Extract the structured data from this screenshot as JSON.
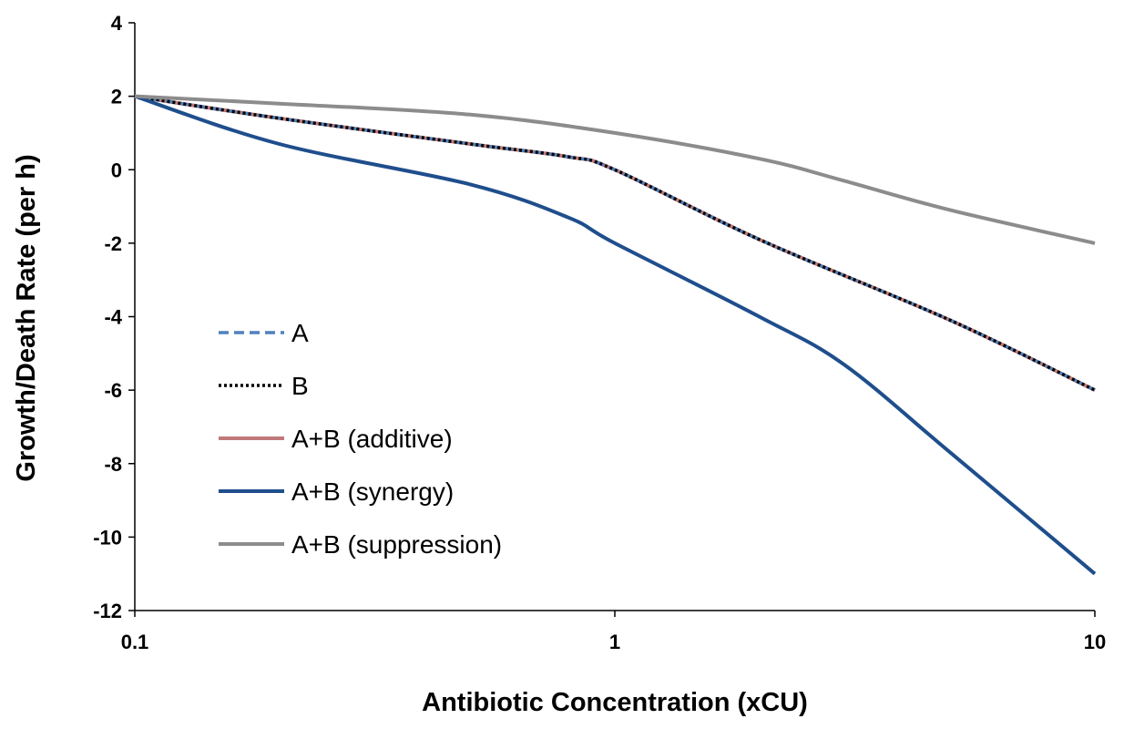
{
  "chart_data": {
    "type": "line",
    "xlabel": "Antibiotic Concentration (xCU)",
    "ylabel": "Growth/Death Rate (per h)",
    "x_scale": "log",
    "xlim": [
      0.1,
      10
    ],
    "ylim": [
      -12,
      4
    ],
    "x_ticks": [
      0.1,
      1,
      10
    ],
    "x_tick_labels": [
      "0.1",
      "1",
      "10"
    ],
    "y_ticks": [
      4,
      2,
      0,
      -2,
      -4,
      -6,
      -8,
      -10,
      -12
    ],
    "y_tick_labels": [
      "4",
      "2",
      "0",
      "-2",
      "-4",
      "-6",
      "-8",
      "-10",
      "-12"
    ],
    "grid": false,
    "legend_position": "lower-left",
    "series": [
      {
        "name": "A",
        "color": "#4F81BD",
        "line_style": "dashed",
        "x": [
          0.1,
          0.2,
          0.5,
          0.8,
          1,
          2,
          5,
          10
        ],
        "y": [
          2,
          1.4,
          0.7,
          0.35,
          0,
          -1.9,
          -4.1,
          -6
        ]
      },
      {
        "name": "B",
        "color": "#000000",
        "line_style": "dotted",
        "x": [
          0.1,
          0.2,
          0.5,
          0.8,
          1,
          2,
          5,
          10
        ],
        "y": [
          2,
          1.4,
          0.7,
          0.35,
          0,
          -1.9,
          -4.1,
          -6
        ]
      },
      {
        "name": "A+B (additive)",
        "color": "#C0797A",
        "line_style": "solid",
        "x": [
          0.1,
          0.2,
          0.5,
          0.8,
          1,
          2,
          5,
          10
        ],
        "y": [
          2,
          1.4,
          0.7,
          0.35,
          0,
          -1.9,
          -4.1,
          -6
        ]
      },
      {
        "name": "A+B (synergy)",
        "color": "#1F4E8C",
        "line_style": "solid",
        "x": [
          0.1,
          0.2,
          0.5,
          0.8,
          1,
          2,
          3,
          5,
          10
        ],
        "y": [
          2,
          0.7,
          -0.4,
          -1.3,
          -2,
          -4,
          -5.3,
          -7.7,
          -11
        ]
      },
      {
        "name": "A+B (suppression)",
        "color": "#8C8C8C",
        "line_style": "solid",
        "x": [
          0.1,
          0.2,
          0.5,
          1,
          2,
          3,
          5,
          10
        ],
        "y": [
          2,
          1.8,
          1.5,
          1,
          0.3,
          -0.3,
          -1.1,
          -2
        ]
      }
    ]
  }
}
